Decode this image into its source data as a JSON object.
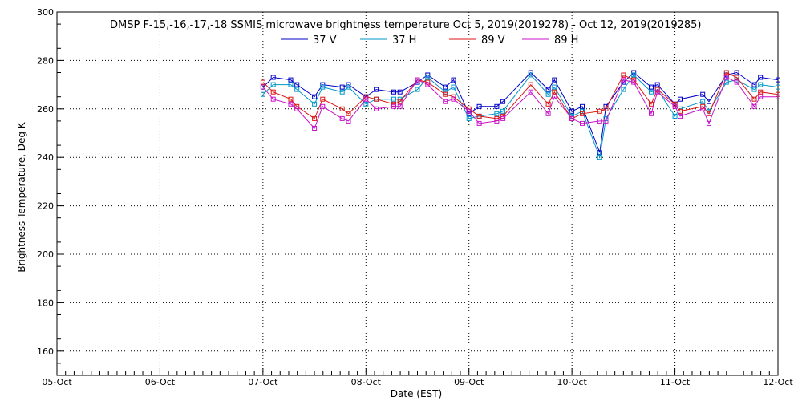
{
  "chart_data": {
    "type": "line",
    "title": "DMSP F-15,-16,-17,-18 SSMIS microwave brightness temperature Oct  5, 2019(2019278) - Oct 12, 2019(2019285)",
    "xlabel": "Date (EST)",
    "ylabel": "Brightness Temperature, Deg K",
    "xlim": [
      0,
      7
    ],
    "ylim": [
      150,
      300
    ],
    "x_unit": "days from 05-Oct-2019",
    "x_ticks": [
      {
        "value": 0,
        "label": "05-Oct"
      },
      {
        "value": 1,
        "label": "06-Oct"
      },
      {
        "value": 2,
        "label": "07-Oct"
      },
      {
        "value": 3,
        "label": "08-Oct"
      },
      {
        "value": 4,
        "label": "09-Oct"
      },
      {
        "value": 5,
        "label": "10-Oct"
      },
      {
        "value": 6,
        "label": "11-Oct"
      },
      {
        "value": 7,
        "label": "12-Oct"
      }
    ],
    "y_ticks": [
      160,
      180,
      200,
      220,
      240,
      260,
      280,
      300
    ],
    "grid": true,
    "legend_position": "top",
    "x": [
      2.0,
      2.1,
      2.27,
      2.33,
      2.5,
      2.58,
      2.77,
      2.83,
      3.0,
      3.1,
      3.27,
      3.33,
      3.5,
      3.6,
      3.77,
      3.85,
      4.0,
      4.1,
      4.27,
      4.33,
      4.6,
      4.77,
      4.83,
      5.0,
      5.1,
      5.27,
      5.33,
      5.5,
      5.6,
      5.77,
      5.83,
      6.0,
      6.05,
      6.27,
      6.33,
      6.5,
      6.6,
      6.77,
      6.83,
      7.0
    ],
    "series": [
      {
        "name": "37 V",
        "color": "#0000c8",
        "values": [
          269,
          273,
          272,
          270,
          265,
          270,
          269,
          270,
          265,
          268,
          267,
          267,
          271,
          274,
          269,
          272,
          258,
          261,
          261,
          263,
          275,
          268,
          272,
          259,
          261,
          242,
          261,
          271,
          275,
          269,
          270,
          262,
          264,
          266,
          263,
          274,
          275,
          270,
          273,
          272
        ]
      },
      {
        "name": "37 H",
        "color": "#0096c8",
        "values": [
          266,
          270,
          270,
          268,
          262,
          269,
          267,
          269,
          262,
          264,
          264,
          264,
          268,
          273,
          267,
          269,
          256,
          257,
          258,
          259,
          274,
          266,
          269,
          257,
          259,
          240,
          256,
          268,
          274,
          267,
          268,
          257,
          260,
          263,
          259,
          271,
          272,
          268,
          270,
          269
        ]
      },
      {
        "name": "89 V",
        "color": "#dc1414",
        "values": [
          271,
          267,
          264,
          261,
          256,
          264,
          260,
          258,
          265,
          264,
          262,
          263,
          272,
          271,
          266,
          265,
          260,
          257,
          256,
          257,
          270,
          262,
          267,
          256,
          258,
          259,
          260,
          274,
          272,
          262,
          268,
          262,
          259,
          261,
          258,
          275,
          273,
          264,
          267,
          266
        ]
      },
      {
        "name": "89 H",
        "color": "#c814c8",
        "values": [
          269,
          264,
          262,
          260,
          252,
          261,
          256,
          255,
          264,
          260,
          261,
          261,
          272,
          270,
          263,
          264,
          259,
          254,
          255,
          256,
          267,
          258,
          265,
          256,
          254,
          255,
          255,
          272,
          271,
          258,
          267,
          261,
          257,
          260,
          254,
          273,
          271,
          261,
          265,
          265
        ]
      }
    ]
  }
}
